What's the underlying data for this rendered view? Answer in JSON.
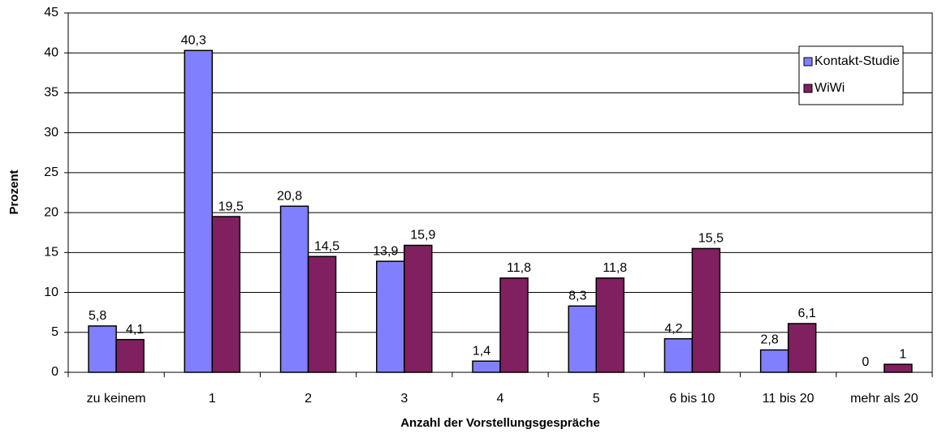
{
  "chart_data": {
    "type": "bar",
    "x_label": "Anzahl der Vorstellungsgespräche",
    "y_label": "Prozent",
    "categories": [
      "zu keinem",
      "1",
      "2",
      "3",
      "4",
      "5",
      "6 bis 10",
      "11 bis 20",
      "mehr als 20"
    ],
    "series": [
      {
        "name": "Kontakt-Studie",
        "color": "#8080ff",
        "values": [
          5.8,
          40.3,
          20.8,
          13.9,
          1.4,
          8.3,
          4.2,
          2.8,
          0
        ],
        "value_labels": [
          "5,8",
          "40,3",
          "20,8",
          "13,9",
          "1,4",
          "8,3",
          "4,2",
          "2,8",
          "0"
        ]
      },
      {
        "name": "WiWi",
        "color": "#802060",
        "values": [
          4.1,
          19.5,
          14.5,
          15.9,
          11.8,
          11.8,
          15.5,
          6.1,
          1
        ],
        "value_labels": [
          "4,1",
          "19,5",
          "14,5",
          "15,9",
          "11,8",
          "11,8",
          "15,5",
          "6,1",
          "1"
        ]
      }
    ],
    "ylim": [
      0,
      45
    ],
    "yticks": [
      0,
      5,
      10,
      15,
      20,
      25,
      30,
      35,
      40,
      45
    ],
    "grid": true,
    "legend": "upper right"
  }
}
